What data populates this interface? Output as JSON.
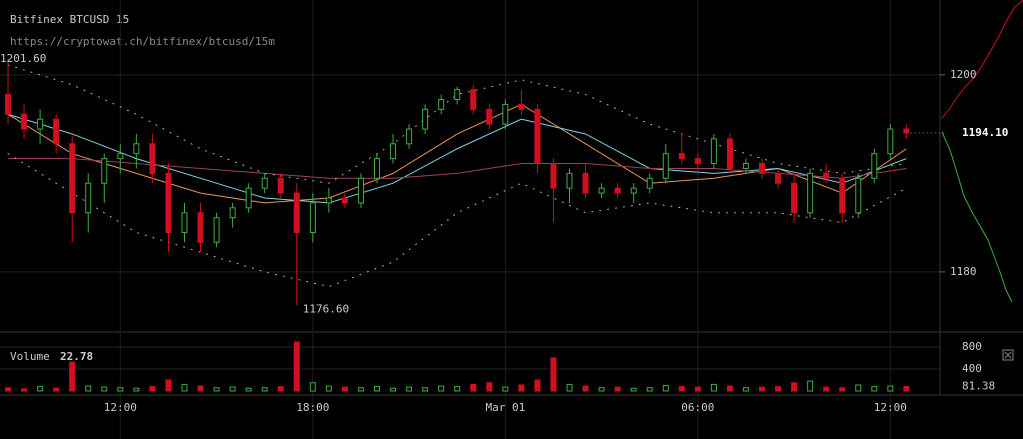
{
  "chart_data": {
    "type": "candlestick",
    "title": "Bitfinex BTCUSD 15",
    "subtitle": "https://cryptowat.ch/bitfinex/btcusd/15m",
    "xlim": [
      8.25,
      37.08
    ],
    "xticks": [
      {
        "value": 12,
        "label": "12:00"
      },
      {
        "value": 18,
        "label": "18:00"
      },
      {
        "value": 24,
        "label": "Mar 01"
      },
      {
        "value": 30,
        "label": "06:00"
      },
      {
        "value": 36,
        "label": "12:00"
      }
    ],
    "ylim": [
      1174.1,
      1207.6
    ],
    "yticks": [
      1180,
      1200
    ],
    "grid": true,
    "up_color": "#3fae3f",
    "down_color": "#d0101e",
    "high_label": "1201.60",
    "low_label": "1176.60",
    "last_price_label": "1194.10",
    "candles": {
      "x": [
        8.5,
        9,
        9.5,
        10,
        10.5,
        11,
        11.5,
        12,
        12.5,
        13,
        13.5,
        14,
        14.5,
        15,
        15.5,
        16,
        16.5,
        17,
        17.5,
        18,
        18.5,
        19,
        19.5,
        20,
        20.5,
        21,
        21.5,
        22,
        22.5,
        23,
        23.5,
        24,
        24.5,
        25,
        25.5,
        26,
        26.5,
        27,
        27.5,
        28,
        28.5,
        29,
        29.5,
        30,
        30.5,
        31,
        31.5,
        32,
        32.5,
        33,
        33.5,
        34,
        34.5,
        35,
        35.5,
        36,
        36.5
      ],
      "open": [
        1198,
        1196,
        1194.5,
        1195.5,
        1193,
        1186,
        1189,
        1191.5,
        1192,
        1193,
        1190,
        1184,
        1186,
        1183,
        1185.5,
        1186.5,
        1188.5,
        1189.5,
        1188,
        1184,
        1187,
        1187.5,
        1187,
        1189.5,
        1191.5,
        1193,
        1194.5,
        1196.5,
        1197.5,
        1198.5,
        1196.5,
        1195,
        1197,
        1196.5,
        1191,
        1188.5,
        1190,
        1188,
        1188.5,
        1188,
        1188.5,
        1189.5,
        1192,
        1191.5,
        1191,
        1193.5,
        1190.5,
        1191,
        1190,
        1189,
        1186,
        1190,
        1189.5,
        1186,
        1189.5,
        1192,
        1194.5
      ],
      "high": [
        1201.6,
        1197,
        1196.5,
        1196,
        1194,
        1190,
        1192,
        1193,
        1194,
        1194,
        1191,
        1187,
        1187,
        1186,
        1187,
        1189,
        1190,
        1190,
        1189,
        1188,
        1188.5,
        1188,
        1190,
        1192,
        1194,
        1195,
        1197,
        1198,
        1198.8,
        1199,
        1197,
        1197.5,
        1198.5,
        1197,
        1191.5,
        1190.5,
        1191,
        1189,
        1189,
        1189,
        1190,
        1193,
        1194,
        1192,
        1194,
        1194,
        1191.5,
        1191.5,
        1190.5,
        1190,
        1190.5,
        1191,
        1190,
        1190,
        1192.5,
        1195,
        1195
      ],
      "low": [
        1195,
        1193.5,
        1193,
        1192,
        1183,
        1184,
        1187,
        1190,
        1190.5,
        1189,
        1182,
        1183,
        1182,
        1182.5,
        1184.5,
        1186,
        1188,
        1187.5,
        1176.6,
        1183,
        1186,
        1186.5,
        1186.5,
        1189,
        1191,
        1192.5,
        1194,
        1196,
        1197,
        1196,
        1194.5,
        1194.5,
        1196,
        1190,
        1185,
        1187,
        1187.5,
        1187.5,
        1187.5,
        1187,
        1188,
        1189,
        1191,
        1190,
        1190.5,
        1190,
        1190,
        1189.5,
        1188.5,
        1185,
        1185.5,
        1189,
        1185,
        1185.5,
        1189,
        1191.5,
        1193.5
      ],
      "close": [
        1196,
        1194.5,
        1195.5,
        1193,
        1186,
        1189,
        1191.5,
        1192,
        1193,
        1190,
        1184,
        1186,
        1183,
        1185.5,
        1186.5,
        1188.5,
        1189.5,
        1188,
        1184,
        1187,
        1187.5,
        1187,
        1189.5,
        1191.5,
        1193,
        1194.5,
        1196.5,
        1197.5,
        1198.5,
        1196.5,
        1195,
        1197,
        1196.5,
        1191,
        1188.5,
        1190,
        1188,
        1188.5,
        1188,
        1188.5,
        1189.5,
        1192,
        1191.5,
        1191,
        1193.5,
        1190.5,
        1191,
        1190,
        1189,
        1186,
        1190,
        1189.5,
        1186,
        1189.5,
        1192,
        1194.5,
        1194.1
      ]
    },
    "series": [
      {
        "color": "#e8955a",
        "x": [
          8.5,
          10.5,
          12.5,
          14.5,
          16.5,
          18.5,
          20.5,
          22.5,
          24.5,
          26.5,
          28.5,
          30.5,
          32.5,
          34.5,
          36.5
        ],
        "values": [
          1196,
          1192,
          1190,
          1188,
          1187,
          1187.5,
          1190,
          1194,
          1197,
          1193,
          1189,
          1189.5,
          1190.5,
          1188,
          1192.5
        ]
      },
      {
        "color": "#7fd6e6",
        "x": [
          8.5,
          10.5,
          12.5,
          14.5,
          16.5,
          18.5,
          20.5,
          22.5,
          24.5,
          26.5,
          28.5,
          30.5,
          32.5,
          34.5,
          36.5
        ],
        "values": [
          1196,
          1194,
          1191.5,
          1189.5,
          1187.5,
          1187,
          1189,
          1192.5,
          1195.5,
          1194,
          1190.5,
          1190,
          1190.5,
          1189,
          1191.5
        ]
      },
      {
        "color": "#a0405a",
        "x": [
          8.5,
          10.5,
          12.5,
          14.5,
          16.5,
          18.5,
          20.5,
          22.5,
          24.5,
          26.5,
          28.5,
          30.5,
          32.5,
          34.5,
          36.5
        ],
        "values": [
          1191.5,
          1191.5,
          1191,
          1190.5,
          1190,
          1189.5,
          1189.5,
          1190,
          1191,
          1191,
          1190.5,
          1190.5,
          1190,
          1189.5,
          1190.5
        ]
      },
      {
        "color": "#bbbbbb",
        "dotted": true,
        "x": [
          8.5,
          10.5,
          12.5,
          14.5,
          16.5,
          18.5,
          20.5,
          22.5,
          24.5,
          26.5,
          28.5,
          30.5,
          32.5,
          34.5,
          36.5
        ],
        "values": [
          1201,
          1199,
          1196,
          1192.5,
          1190,
          1189,
          1193,
          1198,
          1199.5,
          1198,
          1195,
          1193,
          1191,
          1190,
          1191
        ]
      },
      {
        "color": "#bbbbbb",
        "dotted": true,
        "x": [
          8.5,
          10.5,
          12.5,
          14.5,
          16.5,
          18.5,
          20.5,
          22.5,
          24.5,
          26.5,
          28.5,
          30.5,
          32.5,
          34.5,
          36.5
        ],
        "values": [
          1192,
          1188,
          1184,
          1182,
          1180,
          1178.5,
          1181,
          1186,
          1189,
          1186,
          1187,
          1186,
          1186,
          1185,
          1188.5
        ]
      }
    ],
    "volume": {
      "label": "Volume",
      "current": "22.78",
      "ylim": [
        0,
        1000
      ],
      "yticks": [
        400,
        800
      ],
      "values": [
        60,
        40,
        80,
        50,
        527,
        90,
        70,
        60,
        50,
        80,
        200,
        120,
        90,
        60,
        70,
        50,
        60,
        80,
        890,
        150,
        90,
        70,
        60,
        80,
        50,
        70,
        60,
        90,
        80,
        120,
        150,
        70,
        110,
        200,
        600,
        120,
        90,
        60,
        70,
        50,
        60,
        100,
        80,
        70,
        120,
        90,
        60,
        70,
        80,
        150,
        180,
        70,
        60,
        110,
        80,
        90,
        81.38
      ]
    }
  }
}
